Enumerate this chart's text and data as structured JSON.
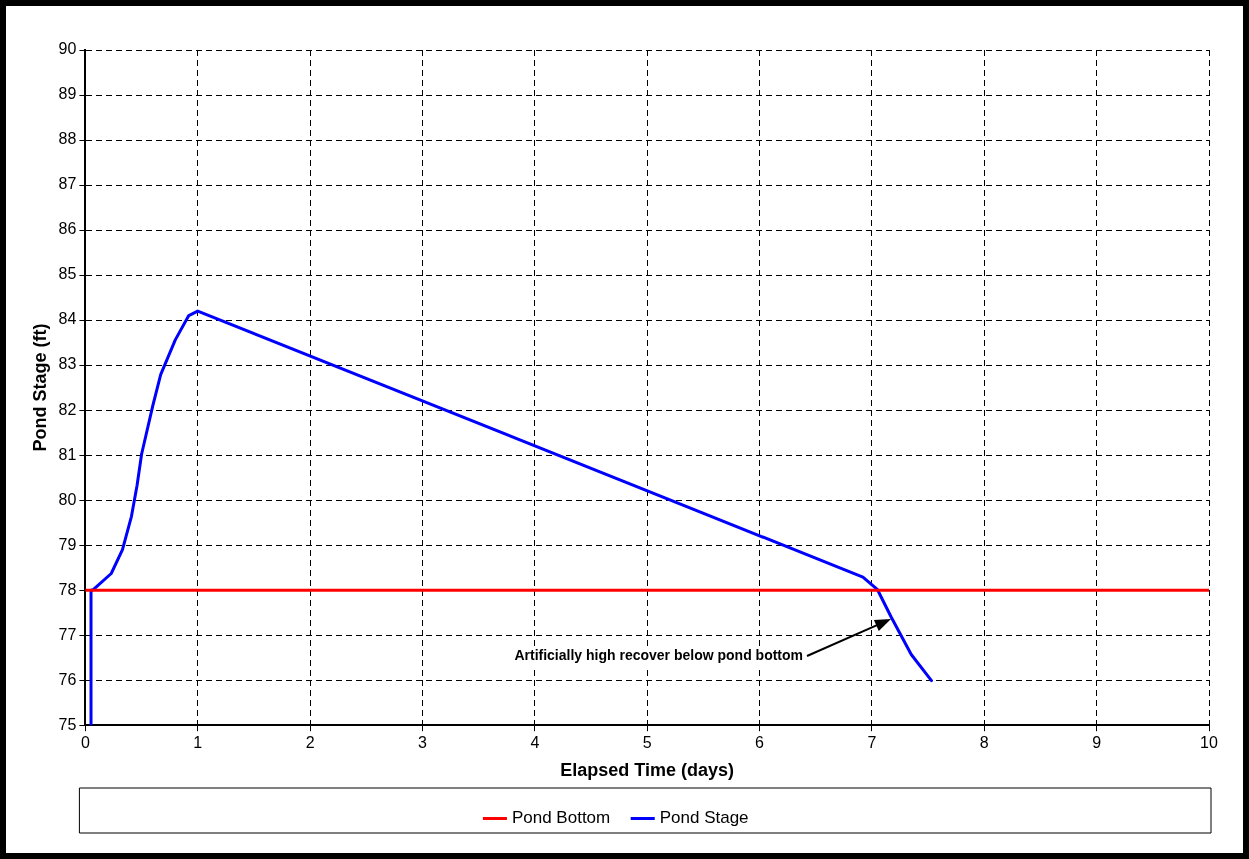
{
  "chart_data": {
    "type": "line",
    "xlabel": "Elapsed Time (days)",
    "ylabel": "Pond Stage (ft)",
    "xlim": [
      0,
      10
    ],
    "xticks": [
      0,
      1,
      2,
      3,
      4,
      5,
      6,
      7,
      8,
      9,
      10
    ],
    "ylim": [
      75,
      90
    ],
    "yticks": [
      75,
      76,
      77,
      78,
      79,
      80,
      81,
      82,
      83,
      84,
      85,
      86,
      87,
      88,
      89,
      90
    ],
    "grid": true,
    "legend": "bottom",
    "marker": "none",
    "line_style": "solid",
    "series": [
      {
        "name": "Pond Bottom",
        "color": "#ff0000",
        "x": [
          0,
          10
        ],
        "values": [
          78,
          78
        ]
      },
      {
        "name": "Pond Stage",
        "color": "#0000ff",
        "x": [
          0.05,
          0.05,
          0.07,
          0.23,
          0.33,
          0.41,
          0.46,
          0.5,
          0.6,
          0.67,
          0.8,
          0.92,
          1.0,
          6.92,
          7.05,
          7.17,
          7.35,
          7.53
        ],
        "values": [
          75,
          78,
          78.01,
          78.37,
          78.9,
          79.64,
          80.33,
          81.02,
          82.1,
          82.79,
          83.56,
          84.1,
          84.2,
          78.29,
          78.01,
          77.41,
          76.57,
          75.99
        ]
      }
    ],
    "annotations": [
      "Artificially high recover below pond bottom"
    ]
  }
}
